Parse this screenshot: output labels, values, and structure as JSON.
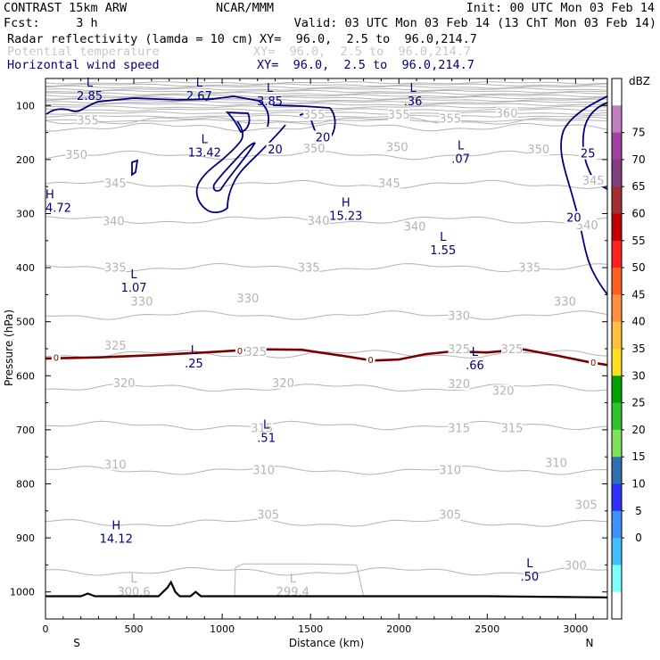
{
  "header": {
    "title_left": "CONTRAST 15km ARW",
    "title_mid": "NCAR/MMM",
    "init": "Init: 00 UTC Mon 03 Feb 14",
    "fcst": "Fcst:     3 h",
    "valid": "Valid: 03 UTC Mon 03 Feb 14 (13 ChT Mon 03 Feb 14)",
    "fields": [
      {
        "name": "Radar reflectivity (lamda = 10 cm)",
        "xy": "XY=  96.0,  2.5 to  96.0,214.7",
        "color": "#000000"
      },
      {
        "name": "Potential temperature",
        "xy": "XY=  96.0,  2.5 to  96.0,214.7",
        "color": "#c8c8c8"
      },
      {
        "name": "Horizontal wind speed",
        "xy": "XY=  96.0,  2.5 to  96.0,214.7",
        "color": "#000080"
      }
    ]
  },
  "chart_data": {
    "type": "cross-section contour",
    "xlabel": "Distance (km)",
    "ylabel": "Pressure (hPa)",
    "x_range": [
      0,
      3180
    ],
    "y_range_hpa": [
      50,
      1050
    ],
    "x_ticks": [
      0,
      500,
      1000,
      1500,
      2000,
      2500,
      3000
    ],
    "y_ticks": [
      100,
      200,
      300,
      400,
      500,
      600,
      700,
      800,
      900,
      1000
    ],
    "left_end_label": "S",
    "right_end_label": "N",
    "colorbar": {
      "unit": "dBZ",
      "levels": [
        "75",
        "70",
        "65",
        "60",
        "55",
        "50",
        "45",
        "40",
        "35",
        "30",
        "25",
        "20",
        "15",
        "10",
        "5",
        "0"
      ],
      "colors": [
        "#ffffff",
        "#c080c0",
        "#a040a0",
        "#804080",
        "#a03030",
        "#c00000",
        "#ff2020",
        "#ff6020",
        "#ff9040",
        "#ffc040",
        "#ffe020",
        "#00a000",
        "#30c030",
        "#80e060",
        "#3070b0",
        "#3030ff",
        "#4090ff",
        "#40c0ff",
        "#80ffff",
        "#ffffff"
      ]
    },
    "theta_contours": [
      {
        "label": "360",
        "p": 128
      },
      {
        "label": "355",
        "p": 140
      },
      {
        "label": "350",
        "p": 192
      },
      {
        "label": "345",
        "p": 246
      },
      {
        "label": "340",
        "p": 312
      },
      {
        "label": "335",
        "p": 400
      },
      {
        "label": "330",
        "p": 488
      },
      {
        "label": "325",
        "p": 560
      },
      {
        "label": "320",
        "p": 622
      },
      {
        "label": "315",
        "p": 692
      },
      {
        "label": "310",
        "p": 775
      },
      {
        "label": "305",
        "p": 872
      },
      {
        "label": "300",
        "p": 962
      }
    ],
    "theta_labels": [
      {
        "t": "355",
        "x": 240,
        "p": 128
      },
      {
        "t": "355",
        "x": 1520,
        "p": 118
      },
      {
        "t": "355",
        "x": 2000,
        "p": 118
      },
      {
        "t": "355",
        "x": 2290,
        "p": 125
      },
      {
        "t": "360",
        "x": 2610,
        "p": 115
      },
      {
        "t": "350",
        "x": 175,
        "p": 192
      },
      {
        "t": "350",
        "x": 1520,
        "p": 180
      },
      {
        "t": "350",
        "x": 1990,
        "p": 178
      },
      {
        "t": "350",
        "x": 2790,
        "p": 182
      },
      {
        "t": "345",
        "x": 395,
        "p": 245
      },
      {
        "t": "345",
        "x": 1945,
        "p": 245
      },
      {
        "t": "345",
        "x": 3100,
        "p": 240
      },
      {
        "t": "340",
        "x": 385,
        "p": 315
      },
      {
        "t": "340",
        "x": 1545,
        "p": 314
      },
      {
        "t": "340",
        "x": 2090,
        "p": 325
      },
      {
        "t": "340",
        "x": 3065,
        "p": 322
      },
      {
        "t": "335",
        "x": 395,
        "p": 401
      },
      {
        "t": "335",
        "x": 1490,
        "p": 401
      },
      {
        "t": "335",
        "x": 2740,
        "p": 401
      },
      {
        "t": "330",
        "x": 545,
        "p": 463
      },
      {
        "t": "330",
        "x": 1145,
        "p": 458
      },
      {
        "t": "330",
        "x": 2340,
        "p": 490
      },
      {
        "t": "330",
        "x": 2940,
        "p": 463
      },
      {
        "t": "325",
        "x": 395,
        "p": 545
      },
      {
        "t": "325",
        "x": 1190,
        "p": 557
      },
      {
        "t": "325",
        "x": 2340,
        "p": 552
      },
      {
        "t": "325",
        "x": 2640,
        "p": 552
      },
      {
        "t": "320",
        "x": 445,
        "p": 614
      },
      {
        "t": "320",
        "x": 1345,
        "p": 614
      },
      {
        "t": "320",
        "x": 2340,
        "p": 616
      },
      {
        "t": "320",
        "x": 2590,
        "p": 628
      },
      {
        "t": "315",
        "x": 1225,
        "p": 698
      },
      {
        "t": "315",
        "x": 2340,
        "p": 698
      },
      {
        "t": "315",
        "x": 2640,
        "p": 698
      },
      {
        "t": "310",
        "x": 395,
        "p": 765
      },
      {
        "t": "310",
        "x": 1235,
        "p": 775
      },
      {
        "t": "310",
        "x": 2290,
        "p": 775
      },
      {
        "t": "310",
        "x": 2890,
        "p": 762
      },
      {
        "t": "305",
        "x": 1260,
        "p": 858
      },
      {
        "t": "305",
        "x": 2290,
        "p": 858
      },
      {
        "t": "305",
        "x": 3060,
        "p": 840
      },
      {
        "t": "300",
        "x": 3000,
        "p": 952
      }
    ],
    "zero_line_label": "0",
    "zero_line": [
      [
        0,
        568
      ],
      [
        300,
        566
      ],
      [
        600,
        562
      ],
      [
        900,
        557
      ],
      [
        1200,
        551
      ],
      [
        1450,
        552
      ],
      [
        1700,
        564
      ],
      [
        1850,
        572
      ],
      [
        2000,
        570
      ],
      [
        2150,
        560
      ],
      [
        2300,
        555
      ],
      [
        2500,
        557
      ],
      [
        2700,
        551
      ],
      [
        2900,
        563
      ],
      [
        3080,
        575
      ],
      [
        3180,
        580
      ]
    ],
    "zero_line_labels": [
      {
        "x": 60,
        "p": 566
      },
      {
        "x": 1100,
        "p": 553
      },
      {
        "x": 1840,
        "p": 570
      },
      {
        "x": 3100,
        "p": 575
      }
    ],
    "speed_contour_labels": [
      {
        "t": "20",
        "x": 1300,
        "p": 180
      },
      {
        "t": "20",
        "x": 1570,
        "p": 158
      },
      {
        "t": "20",
        "x": 2990,
        "p": 307
      },
      {
        "t": "25",
        "x": 3070,
        "p": 188
      }
    ],
    "extrema": [
      {
        "type": "L",
        "value": "2.85",
        "x": 250,
        "p": 65
      },
      {
        "type": "L",
        "value": "2.67",
        "x": 870,
        "p": 65
      },
      {
        "type": "L",
        "value": "3.85",
        "x": 1270,
        "p": 75
      },
      {
        "type": "L",
        "value": ".36",
        "x": 2080,
        "p": 75
      },
      {
        "type": "L",
        "value": "13.42",
        "x": 900,
        "p": 170
      },
      {
        "type": "L",
        "value": ".07",
        "x": 2350,
        "p": 181
      },
      {
        "type": "H",
        "value": "4.72",
        "x": 0,
        "p": 272
      },
      {
        "type": "H",
        "value": "15.23",
        "x": 1700,
        "p": 287
      },
      {
        "type": "L",
        "value": "1.55",
        "x": 2250,
        "p": 350
      },
      {
        "type": "L",
        "value": "1.07",
        "x": 500,
        "p": 420
      },
      {
        "type": "L",
        "value": ".25",
        "x": 840,
        "p": 560
      },
      {
        "type": "L",
        "value": ".66",
        "x": 2430,
        "p": 563
      },
      {
        "type": "L",
        "value": ".51",
        "x": 1250,
        "p": 698
      },
      {
        "type": "H",
        "value": "14.12",
        "x": 400,
        "p": 884
      },
      {
        "type": "L",
        "value": ".50",
        "x": 2740,
        "p": 954
      },
      {
        "type": "L",
        "value": "300.6",
        "x": 500,
        "p": 982
      },
      {
        "type": "L",
        "value": "299.4",
        "x": 1400,
        "p": 982
      }
    ],
    "terrain": [
      [
        0,
        1008
      ],
      [
        200,
        1008
      ],
      [
        240,
        1003
      ],
      [
        280,
        1008
      ],
      [
        640,
        1008
      ],
      [
        690,
        992
      ],
      [
        710,
        982
      ],
      [
        735,
        1000
      ],
      [
        760,
        1008
      ],
      [
        820,
        1008
      ],
      [
        850,
        1000
      ],
      [
        880,
        1008
      ],
      [
        2000,
        1008
      ],
      [
        2500,
        1008
      ],
      [
        3180,
        1010
      ]
    ],
    "colors": {
      "theta": "#b4b4b4",
      "speed": "#000080",
      "zero": "#7a0000",
      "terrain": "#000000",
      "axis": "#000000"
    }
  }
}
